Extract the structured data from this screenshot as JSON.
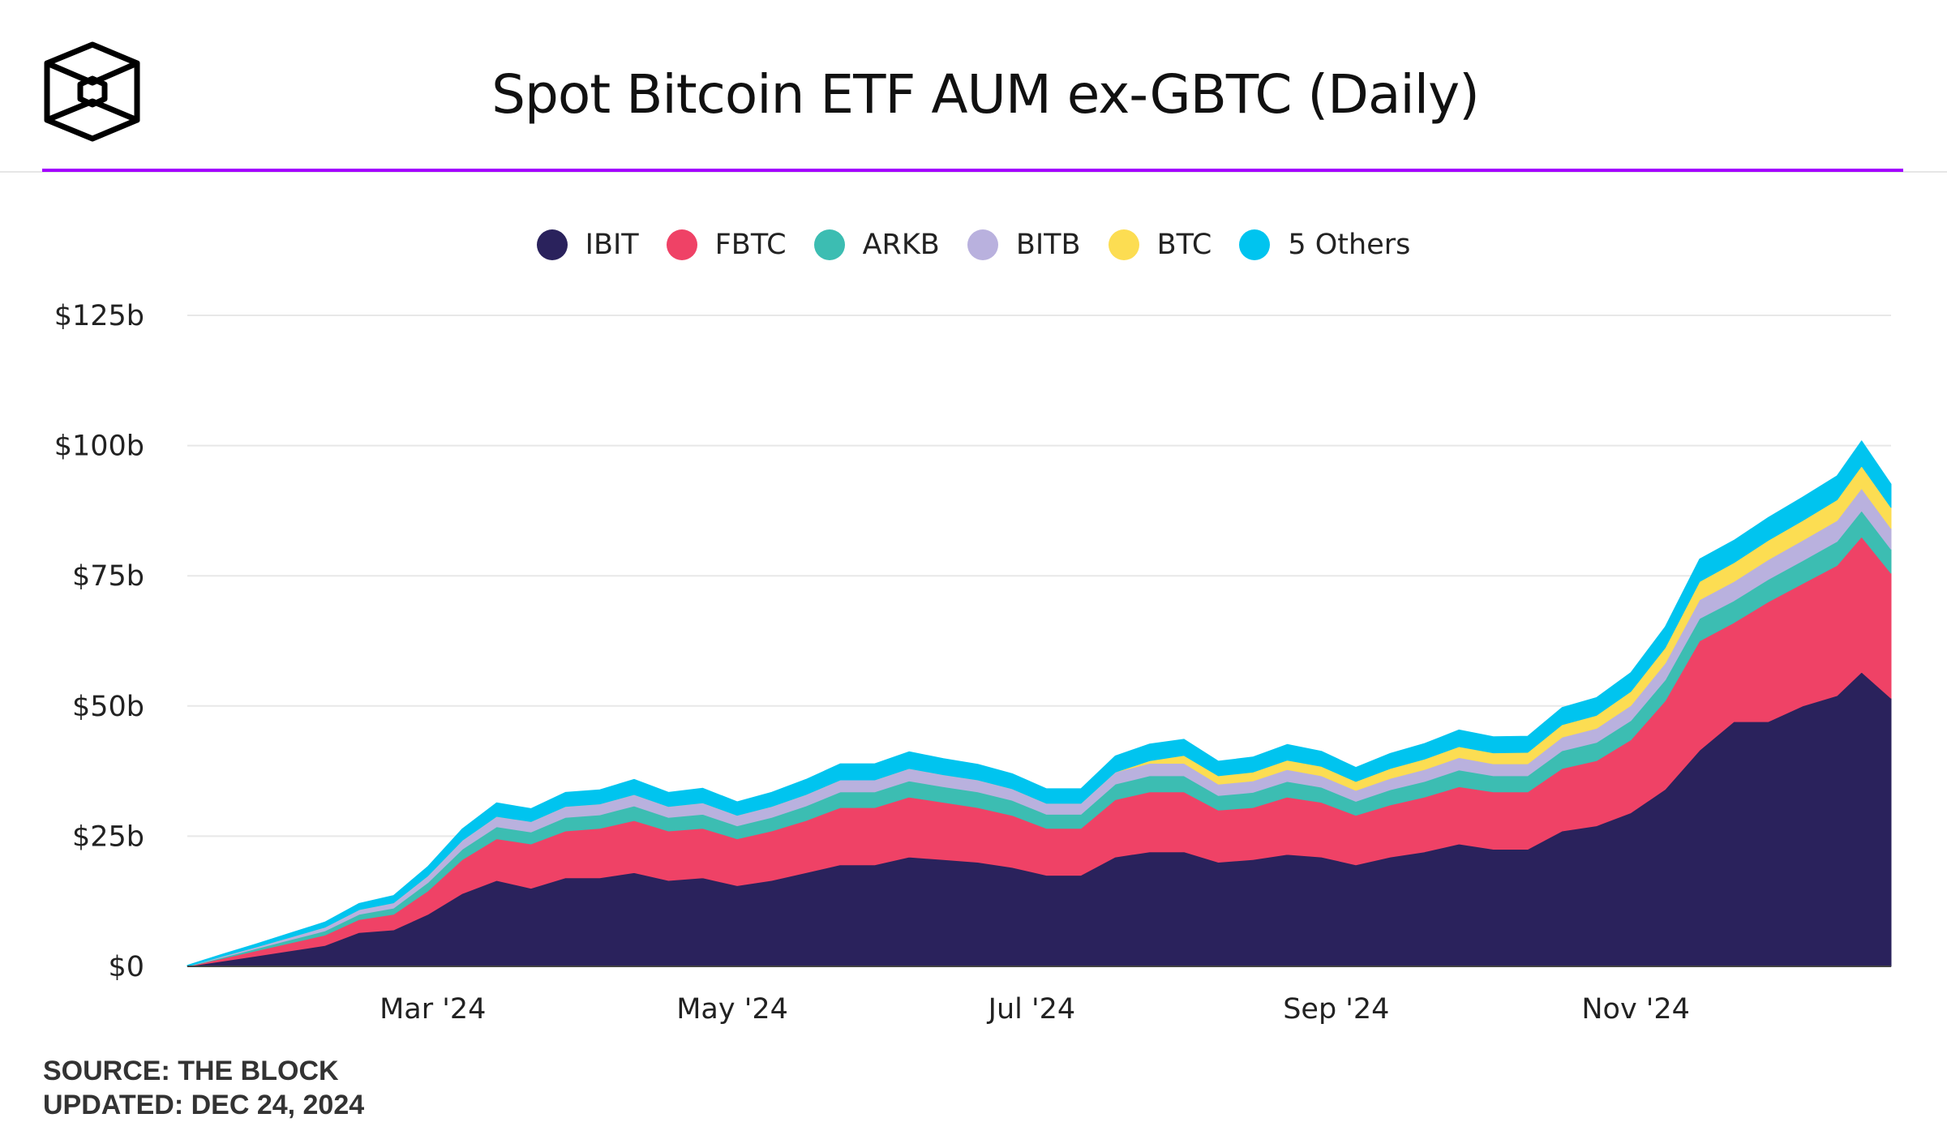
{
  "header": {
    "title": "Spot Bitcoin ETF AUM ex-GBTC (Daily)",
    "logo": "The Block"
  },
  "footer": {
    "source": "SOURCE: THE BLOCK",
    "updated": "UPDATED: DEC 24, 2024"
  },
  "chart_data": {
    "type": "area",
    "stacked": true,
    "title": "Spot Bitcoin ETF AUM ex-GBTC (Daily)",
    "xlabel": "",
    "ylabel": "",
    "ylim": [
      0,
      125
    ],
    "yticks": [
      {
        "v": 0,
        "label": "$0"
      },
      {
        "v": 25,
        "label": "$25b"
      },
      {
        "v": 50,
        "label": "$50b"
      },
      {
        "v": 75,
        "label": "$75b"
      },
      {
        "v": 100,
        "label": "$100b"
      },
      {
        "v": 125,
        "label": "$125b"
      }
    ],
    "xticks": [
      {
        "date": "2024-03-01",
        "label": "Mar '24"
      },
      {
        "date": "2024-05-01",
        "label": "May '24"
      },
      {
        "date": "2024-07-01",
        "label": "Jul '24"
      },
      {
        "date": "2024-09-01",
        "label": "Sep '24"
      },
      {
        "date": "2024-11-01",
        "label": "Nov '24"
      }
    ],
    "xrange": [
      "2024-01-11",
      "2024-12-23"
    ],
    "grid": true,
    "legend_position": "top-center",
    "x": [
      "2024-01-11",
      "2024-01-18",
      "2024-01-25",
      "2024-02-01",
      "2024-02-08",
      "2024-02-15",
      "2024-02-22",
      "2024-02-29",
      "2024-03-07",
      "2024-03-14",
      "2024-03-21",
      "2024-03-28",
      "2024-04-04",
      "2024-04-11",
      "2024-04-18",
      "2024-04-25",
      "2024-05-02",
      "2024-05-09",
      "2024-05-16",
      "2024-05-23",
      "2024-05-30",
      "2024-06-06",
      "2024-06-13",
      "2024-06-20",
      "2024-06-27",
      "2024-07-04",
      "2024-07-11",
      "2024-07-18",
      "2024-07-25",
      "2024-08-01",
      "2024-08-08",
      "2024-08-15",
      "2024-08-22",
      "2024-08-29",
      "2024-09-05",
      "2024-09-12",
      "2024-09-19",
      "2024-09-26",
      "2024-10-03",
      "2024-10-10",
      "2024-10-17",
      "2024-10-24",
      "2024-10-31",
      "2024-11-07",
      "2024-11-14",
      "2024-11-21",
      "2024-11-28",
      "2024-12-05",
      "2024-12-12",
      "2024-12-17",
      "2024-12-23"
    ],
    "series": [
      {
        "name": "IBIT",
        "color": "#2a225c",
        "values": [
          0,
          1,
          2,
          3,
          4,
          6.5,
          7,
          10,
          14,
          16.5,
          15,
          17,
          17,
          18,
          16.5,
          17,
          15.5,
          16.5,
          18,
          19.5,
          19.5,
          21,
          20.5,
          20,
          19,
          17.5,
          17.5,
          21,
          22,
          22,
          20,
          20.5,
          21.5,
          21,
          19.5,
          21,
          22,
          23.5,
          22.5,
          22.5,
          26,
          27,
          29.5,
          34,
          41.5,
          47,
          47,
          50,
          52,
          56.5,
          51.5
        ]
      },
      {
        "name": "FBTC",
        "color": "#ef4266",
        "values": [
          0,
          0.5,
          1,
          1.5,
          2,
          2.5,
          3,
          4.5,
          6.5,
          8,
          8.5,
          9,
          9.5,
          10,
          9.5,
          9.5,
          9,
          9.5,
          10,
          11,
          11,
          11.5,
          11,
          10.5,
          10,
          9,
          9,
          11,
          11.5,
          11.5,
          10,
          10,
          11,
          10.5,
          9.5,
          10,
          10.5,
          11,
          11,
          11,
          12,
          12.5,
          14,
          17,
          21,
          19,
          23,
          23.5,
          25,
          26,
          24
        ]
      },
      {
        "name": "ARKB",
        "color": "#3cbdb2",
        "values": [
          0,
          0.2,
          0.4,
          0.6,
          0.8,
          1,
          1.2,
          1.6,
          2,
          2.3,
          2.3,
          2.6,
          2.6,
          2.8,
          2.6,
          2.7,
          2.5,
          2.6,
          2.8,
          3,
          3,
          3.1,
          3,
          3,
          2.9,
          2.7,
          2.7,
          3,
          3.1,
          3.1,
          2.8,
          2.9,
          3,
          2.9,
          2.7,
          2.9,
          3,
          3.2,
          3.1,
          3.1,
          3.4,
          3.5,
          3.7,
          4,
          4.3,
          4.2,
          4.3,
          4.4,
          4.6,
          5,
          4.6
        ]
      },
      {
        "name": "BITB",
        "color": "#b9b1de",
        "values": [
          0,
          0.2,
          0.3,
          0.5,
          0.7,
          0.9,
          1,
          1.3,
          1.7,
          2,
          2,
          2.1,
          2.1,
          2.2,
          2.1,
          2.2,
          2,
          2.1,
          2.2,
          2.3,
          2.3,
          2.4,
          2.3,
          2.3,
          2.2,
          2.1,
          2.1,
          2.3,
          2.4,
          2.4,
          2.2,
          2.2,
          2.3,
          2.2,
          2.1,
          2.2,
          2.3,
          2.4,
          2.3,
          2.3,
          2.6,
          2.7,
          2.9,
          3.2,
          3.6,
          3.7,
          3.8,
          3.9,
          4,
          4.3,
          4
        ]
      },
      {
        "name": "BTC",
        "color": "#fcdd52",
        "values": [
          0,
          0,
          0,
          0,
          0,
          0,
          0,
          0,
          0,
          0,
          0,
          0,
          0,
          0,
          0,
          0,
          0,
          0,
          0,
          0,
          0,
          0,
          0,
          0,
          0,
          0,
          0,
          0,
          0.5,
          1.5,
          1.6,
          1.7,
          1.8,
          1.8,
          1.7,
          1.9,
          2,
          2.1,
          2.1,
          2.2,
          2.4,
          2.5,
          2.7,
          3,
          3.5,
          3.6,
          3.7,
          3.8,
          4,
          4.3,
          4
        ]
      },
      {
        "name": "5 Others",
        "color": "#00c4ef",
        "values": [
          0.2,
          0.4,
          0.6,
          0.8,
          1,
          1.2,
          1.4,
          1.8,
          2.2,
          2.6,
          2.5,
          2.7,
          2.7,
          2.9,
          2.7,
          2.8,
          2.6,
          2.7,
          2.9,
          3.1,
          3.1,
          3.2,
          3.1,
          3,
          2.9,
          2.8,
          2.8,
          3.1,
          3.2,
          3.1,
          2.8,
          2.9,
          3,
          2.9,
          2.7,
          2.9,
          3,
          3.2,
          3.1,
          3.1,
          3.3,
          3.4,
          3.6,
          4,
          4.3,
          4.3,
          4.4,
          4.5,
          4.6,
          4.8,
          4.5
        ]
      }
    ]
  }
}
